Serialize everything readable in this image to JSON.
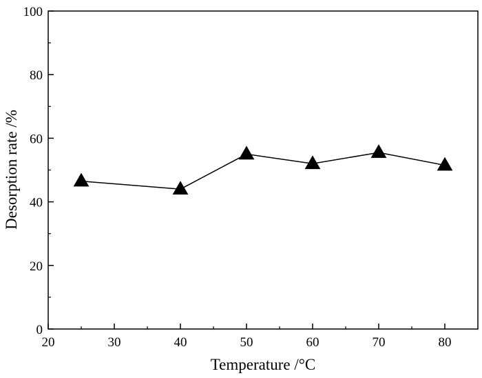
{
  "chart_data": {
    "type": "line",
    "title": "",
    "xlabel": "Temperature /°C",
    "ylabel": "Desorption rate /%",
    "xlim": [
      20,
      85
    ],
    "ylim": [
      0,
      100
    ],
    "x_ticks": [
      20,
      30,
      40,
      50,
      60,
      70,
      80
    ],
    "y_ticks": [
      0,
      20,
      40,
      60,
      80,
      100
    ],
    "grid": false,
    "marker": "triangle",
    "colors": {
      "line": "#000000",
      "marker": "#000000"
    },
    "series": [
      {
        "x": [
          25,
          40,
          50,
          60,
          70,
          80
        ],
        "y": [
          46.5,
          44,
          55,
          52,
          55.5,
          51.5
        ]
      }
    ]
  }
}
